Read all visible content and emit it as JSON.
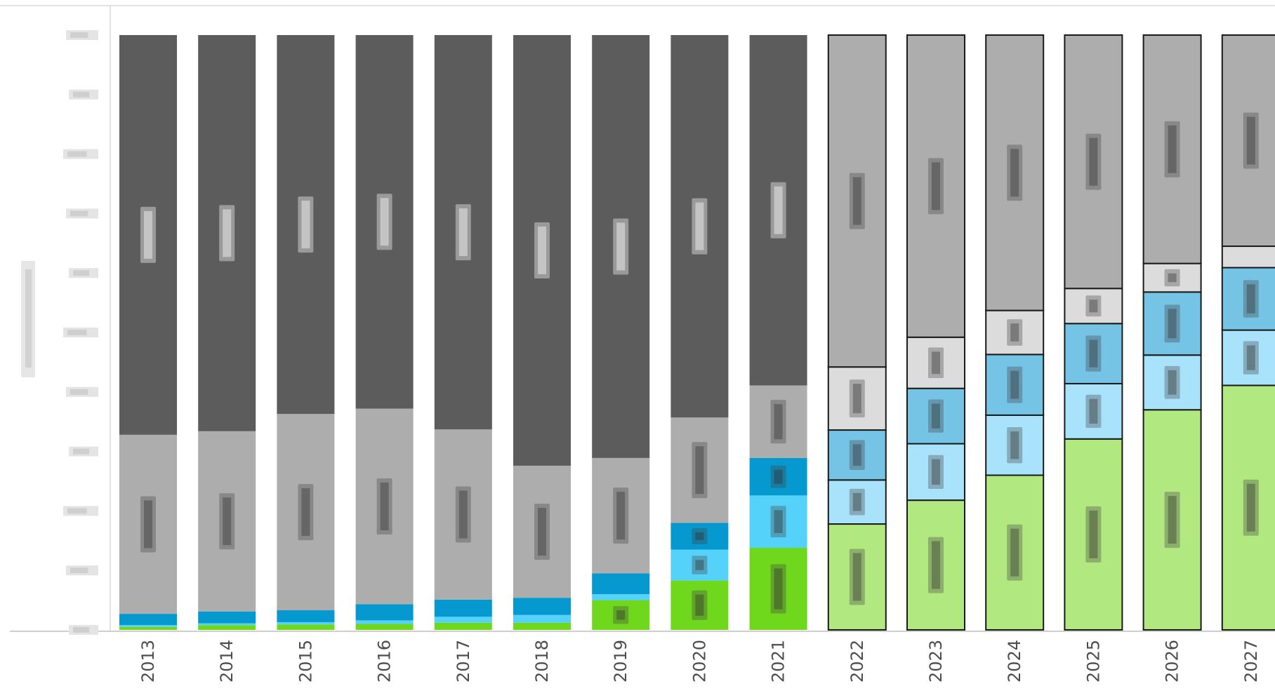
{
  "chart_data": {
    "type": "bar",
    "stacked": true,
    "normalized": true,
    "title": "",
    "xlabel": "",
    "ylabel": "",
    "ylim": [
      0,
      100
    ],
    "y_ticks_blurred": true,
    "segment_labels_blurred": true,
    "grid": false,
    "legend": "none",
    "categories": [
      "2013",
      "2014",
      "2015",
      "2016",
      "2017",
      "2018",
      "2019",
      "2020",
      "2021",
      "2022",
      "2023",
      "2024",
      "2025",
      "2026",
      "2027"
    ],
    "forecast_from": "2022",
    "series": [
      {
        "key": "green",
        "color": "#70d81c",
        "forecast_color": "#b2e880",
        "values": [
          0.5,
          0.8,
          0.9,
          1.0,
          1.2,
          1.2,
          5.0,
          8.3,
          13.8,
          17.8,
          21.8,
          26.0,
          32.1,
          37.0,
          41.1
        ]
      },
      {
        "key": "light-blue",
        "color": "#55d2fa",
        "forecast_color": "#a9e2fb",
        "values": [
          0.3,
          0.3,
          0.4,
          0.6,
          1.0,
          1.3,
          1.0,
          5.2,
          8.8,
          7.4,
          9.5,
          10.1,
          9.3,
          9.2,
          9.3
        ]
      },
      {
        "key": "blue",
        "color": "#0599d0",
        "forecast_color": "#75c4e5",
        "values": [
          1.9,
          2.0,
          2.0,
          2.7,
          2.9,
          2.9,
          3.5,
          4.5,
          6.3,
          8.4,
          9.3,
          10.2,
          10.1,
          10.6,
          10.5
        ]
      },
      {
        "key": "very-light-gray",
        "color": "#dcdcdc",
        "forecast_color": "#dcdcdc",
        "values": [
          0,
          0,
          0,
          0,
          0,
          0,
          0,
          0,
          0,
          10.6,
          8.6,
          7.4,
          5.9,
          4.8,
          3.6
        ]
      },
      {
        "key": "light-gray",
        "color": "#adadad",
        "forecast_color": "#adadad",
        "values": [
          30.1,
          30.3,
          33.0,
          32.9,
          28.6,
          22.2,
          19.4,
          17.7,
          12.2,
          55.8,
          50.8,
          46.3,
          42.6,
          38.4,
          35.5
        ]
      },
      {
        "key": "dark-gray",
        "color": "#5c5c5c",
        "forecast_color": "#5c5c5c",
        "values": [
          67.2,
          66.6,
          63.7,
          62.8,
          66.3,
          72.4,
          71.1,
          64.3,
          58.9,
          0,
          0,
          0,
          0,
          0,
          0
        ]
      }
    ]
  }
}
